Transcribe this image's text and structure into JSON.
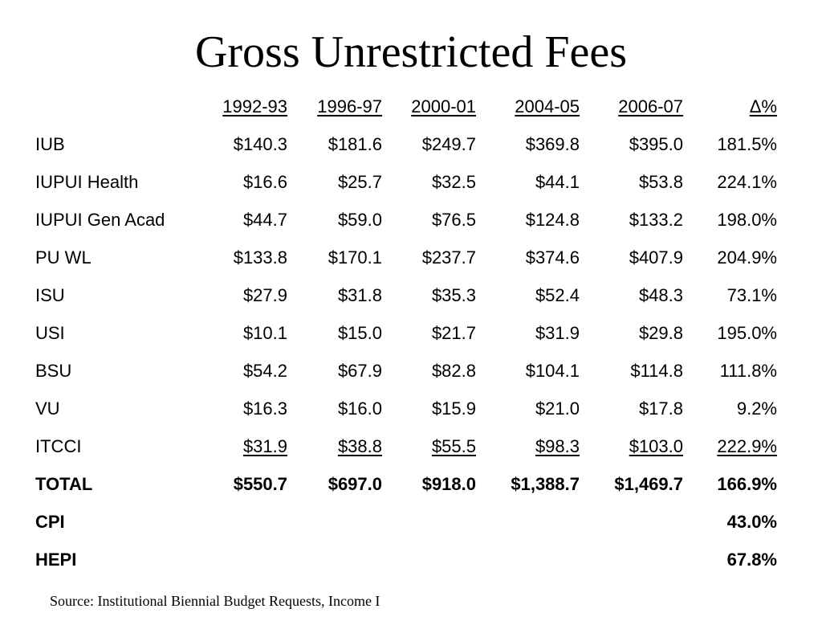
{
  "title": "Gross Unrestricted Fees",
  "table": {
    "headers": [
      "1992-93",
      "1996-97",
      "2000-01",
      "2004-05",
      "2006-07",
      "Δ%"
    ],
    "rows": [
      {
        "label": "IUB",
        "values": [
          "$140.3",
          "$181.6",
          "$249.7",
          "$369.8",
          "$395.0",
          "181.5%"
        ]
      },
      {
        "label": "IUPUI Health",
        "values": [
          "$16.6",
          "$25.7",
          "$32.5",
          "$44.1",
          "$53.8",
          "224.1%"
        ]
      },
      {
        "label": "IUPUI Gen Acad",
        "values": [
          "$44.7",
          "$59.0",
          "$76.5",
          "$124.8",
          "$133.2",
          "198.0%"
        ]
      },
      {
        "label": "PU WL",
        "values": [
          "$133.8",
          "$170.1",
          "$237.7",
          "$374.6",
          "$407.9",
          "204.9%"
        ]
      },
      {
        "label": "ISU",
        "values": [
          "$27.9",
          "$31.8",
          "$35.3",
          "$52.4",
          "$48.3",
          "73.1%"
        ]
      },
      {
        "label": "USI",
        "values": [
          "$10.1",
          "$15.0",
          "$21.7",
          "$31.9",
          "$29.8",
          "195.0%"
        ]
      },
      {
        "label": "BSU",
        "values": [
          "$54.2",
          "$67.9",
          "$82.8",
          "$104.1",
          "$114.8",
          "111.8%"
        ]
      },
      {
        "label": "VU",
        "values": [
          "$16.3",
          "$16.0",
          "$15.9",
          "$21.0",
          "$17.8",
          "9.2%"
        ]
      },
      {
        "label": "ITCCI",
        "values": [
          "$31.9",
          "$38.8",
          "$55.5",
          "$98.3",
          "$103.0",
          "222.9%"
        ]
      }
    ],
    "total": {
      "label": "TOTAL",
      "values": [
        "$550.7",
        "$697.0",
        "$918.0",
        "$1,388.7",
        "$1,469.7",
        "166.9%"
      ]
    },
    "cpi": {
      "label": "CPI",
      "value": "43.0%"
    },
    "hepi": {
      "label": "HEPI",
      "value": "67.8%"
    }
  },
  "source": "Source: Institutional Biennial Budget Requests, Income I"
}
